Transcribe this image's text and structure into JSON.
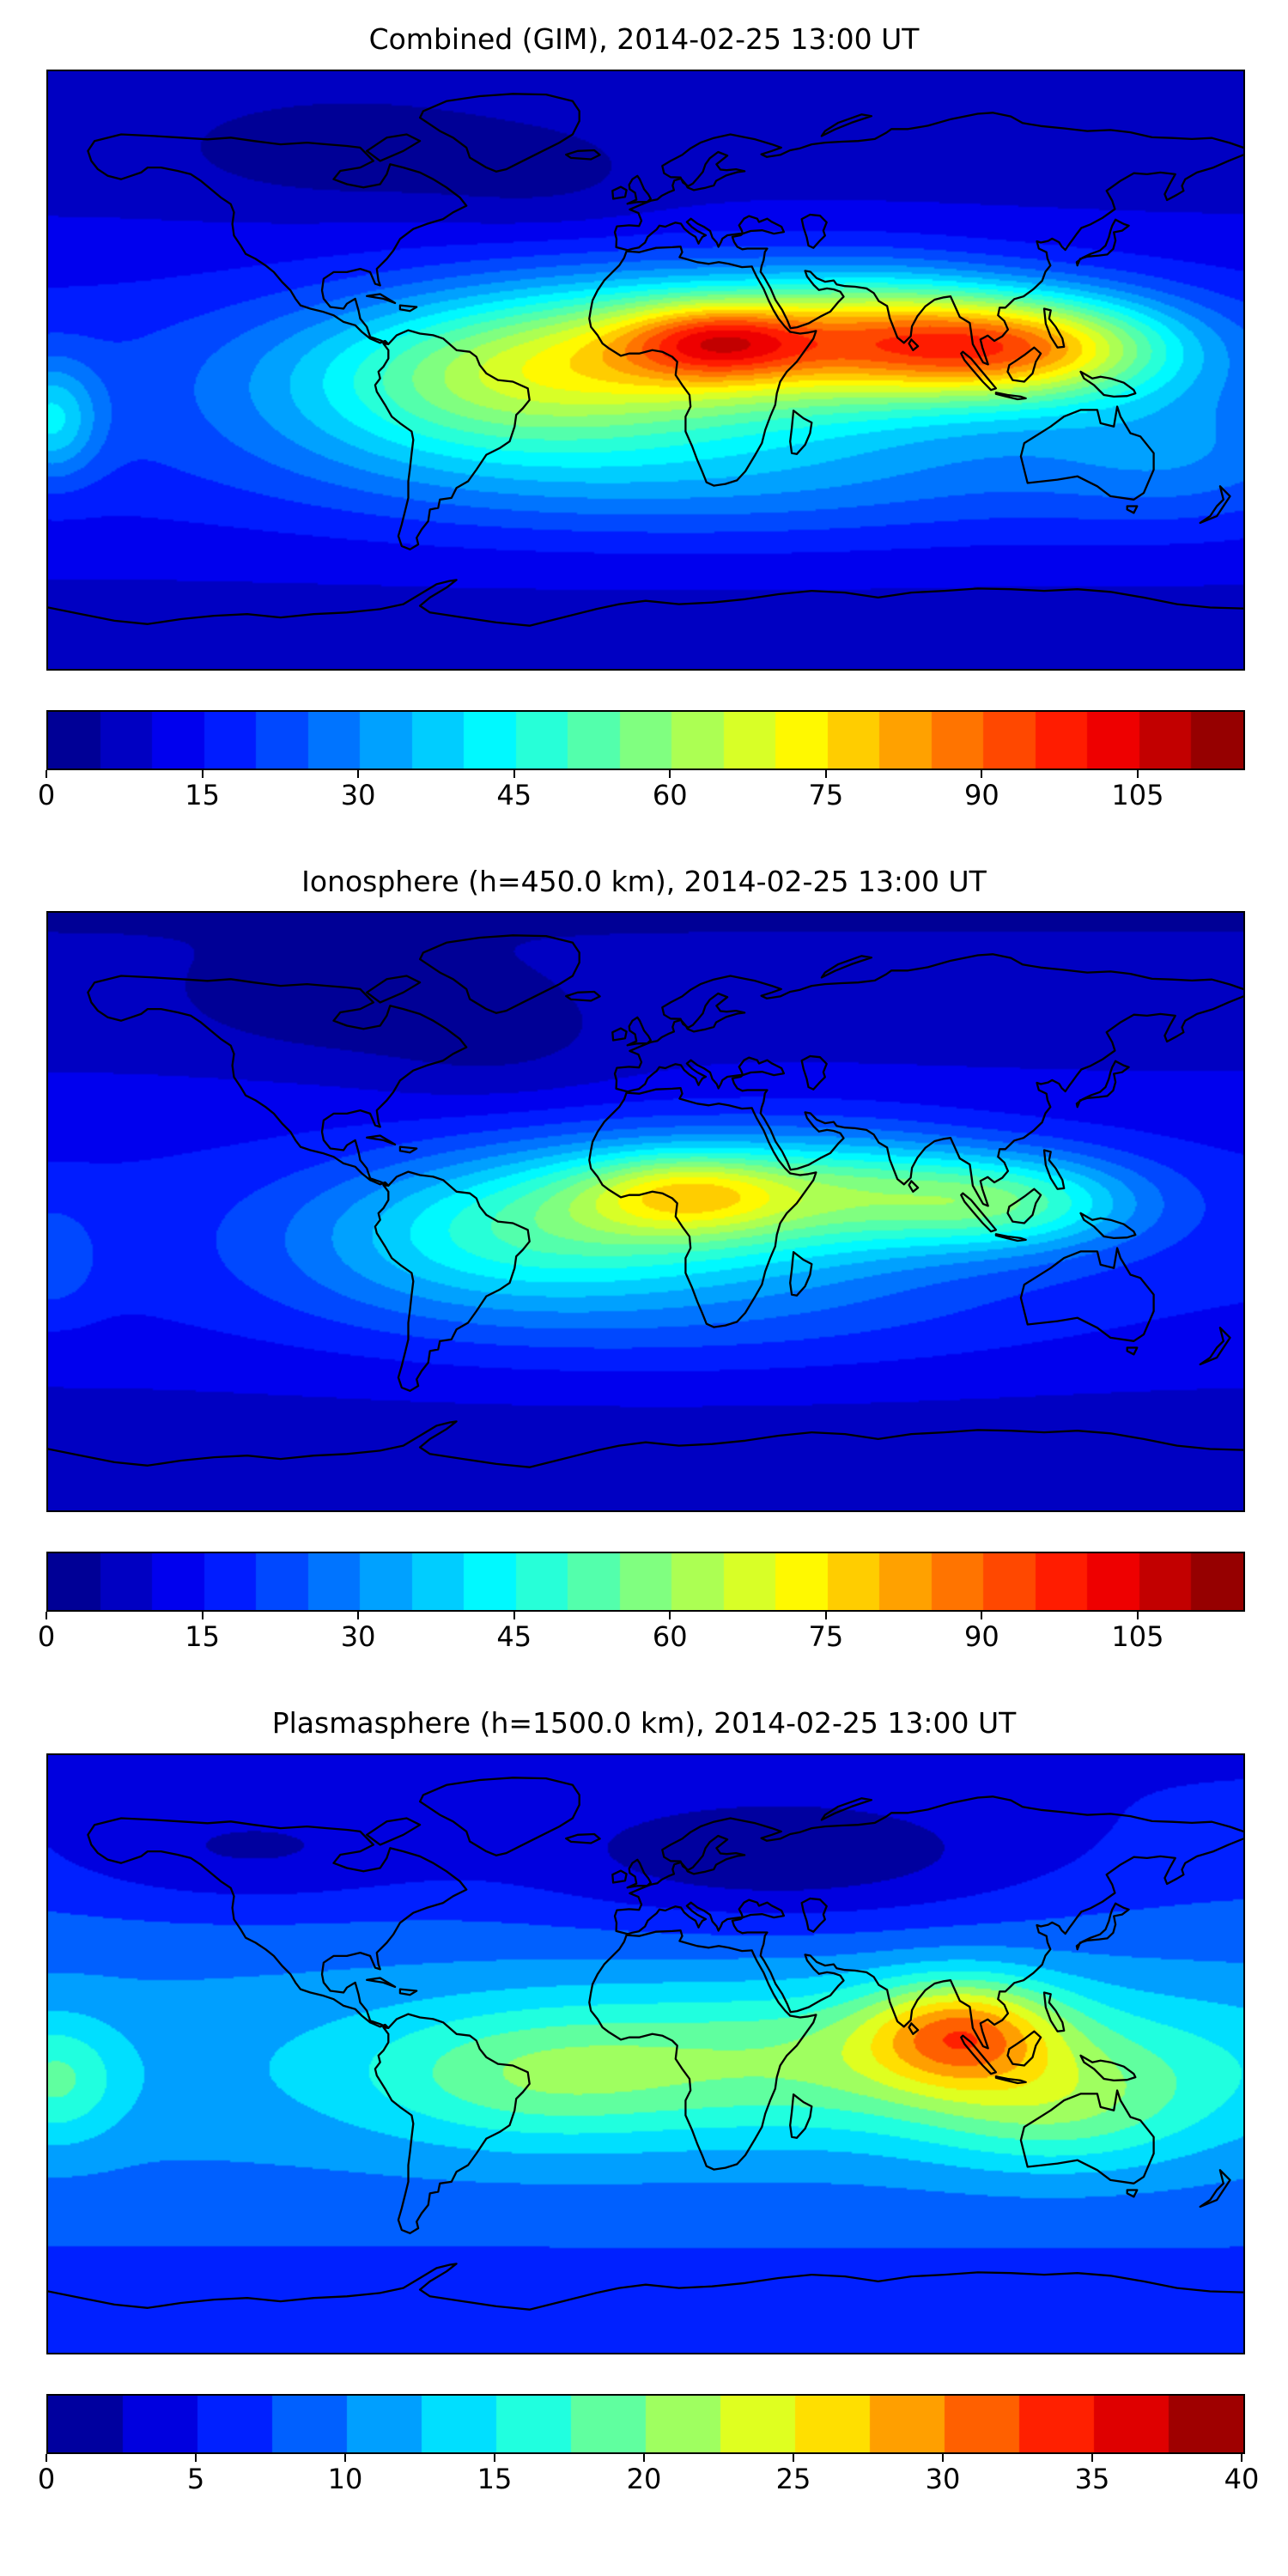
{
  "colors": {
    "background": "#ffffff",
    "coastline": "#000000",
    "frame": "#000000"
  },
  "chart_data": [
    {
      "type": "heatmap",
      "title": "Combined (GIM), 2014-02-25 13:00 UT",
      "projection": "equirectangular",
      "lon_range": [
        -180,
        180
      ],
      "lat_range": [
        -90,
        90
      ],
      "colormap": "jet",
      "value_range": [
        0,
        115
      ],
      "contour_step": 5,
      "colorbar_orientation": "horizontal",
      "colorbar_ticks": [
        0,
        15,
        30,
        45,
        60,
        75,
        90,
        105
      ],
      "peak_value": 105,
      "peak_location": {
        "lon": 22,
        "lat": 9
      },
      "field_model": {
        "base": 5,
        "blobs": [
          {
            "lon": 0,
            "lat": -8,
            "sx": 9999,
            "sy": 38,
            "a": 14
          },
          {
            "lon": 20,
            "lat": 6,
            "sx": 65,
            "sy": 16,
            "a": 50
          },
          {
            "lon": 22,
            "lat": 9,
            "sx": 20,
            "sy": 8,
            "a": 32
          },
          {
            "lon": 113,
            "lat": 7,
            "sx": 32,
            "sy": 11,
            "a": 52
          },
          {
            "lon": 70,
            "lat": 12,
            "sx": 25,
            "sy": 12,
            "a": 18
          },
          {
            "lon": -50,
            "lat": -8,
            "sx": 45,
            "sy": 16,
            "a": 22
          },
          {
            "lon": -179,
            "lat": -15,
            "sx": 10,
            "sy": 12,
            "a": 22
          },
          {
            "lon": 20,
            "lat": -32,
            "sx": 80,
            "sy": 14,
            "a": 14
          },
          {
            "lon": 160,
            "lat": -25,
            "sx": 30,
            "sy": 15,
            "a": 10
          },
          {
            "lon": -90,
            "lat": 62,
            "sx": 35,
            "sy": 10,
            "a": -5
          },
          {
            "lon": -30,
            "lat": 55,
            "sx": 25,
            "sy": 10,
            "a": -4
          }
        ]
      }
    },
    {
      "type": "heatmap",
      "title": "Ionosphere  (h=450.0 km), 2014-02-25 13:00 UT",
      "projection": "equirectangular",
      "lon_range": [
        -180,
        180
      ],
      "lat_range": [
        -90,
        90
      ],
      "colormap": "jet",
      "value_range": [
        0,
        115
      ],
      "contour_step": 5,
      "colorbar_orientation": "horizontal",
      "colorbar_ticks": [
        0,
        15,
        30,
        45,
        60,
        75,
        90,
        105
      ],
      "peak_value": 78,
      "peak_location": {
        "lon": 13,
        "lat": 6
      },
      "field_model": {
        "base": 4,
        "blobs": [
          {
            "lon": 0,
            "lat": -5,
            "sx": 9999,
            "sy": 40,
            "a": 12
          },
          {
            "lon": 15,
            "lat": 2,
            "sx": 55,
            "sy": 15,
            "a": 36
          },
          {
            "lon": 13,
            "lat": 6,
            "sx": 22,
            "sy": 8,
            "a": 24
          },
          {
            "lon": 110,
            "lat": 3,
            "sx": 28,
            "sy": 10,
            "a": 30
          },
          {
            "lon": 65,
            "lat": 8,
            "sx": 25,
            "sy": 11,
            "a": 12
          },
          {
            "lon": -50,
            "lat": -10,
            "sx": 42,
            "sy": 15,
            "a": 16
          },
          {
            "lon": 10,
            "lat": -30,
            "sx": 75,
            "sy": 14,
            "a": 9
          },
          {
            "lon": -179,
            "lat": -15,
            "sx": 10,
            "sy": 12,
            "a": 8
          },
          {
            "lon": -45,
            "lat": 48,
            "sx": 28,
            "sy": 12,
            "a": -5
          },
          {
            "lon": -95,
            "lat": 60,
            "sx": 30,
            "sy": 10,
            "a": -5
          }
        ]
      }
    },
    {
      "type": "heatmap",
      "title": "Plasmasphere (h=1500.0 km), 2014-02-25 13:00 UT",
      "projection": "equirectangular",
      "lon_range": [
        -180,
        180
      ],
      "lat_range": [
        -90,
        90
      ],
      "colormap": "jet",
      "value_range": [
        0,
        40
      ],
      "contour_step": 2.5,
      "colorbar_orientation": "horizontal",
      "colorbar_ticks": [
        0,
        5,
        10,
        15,
        20,
        25,
        30,
        35,
        40
      ],
      "peak_value": 33,
      "peak_location": {
        "lon": 95,
        "lat": 7
      },
      "field_model": {
        "base": 4,
        "blobs": [
          {
            "lon": 0,
            "lat": -5,
            "sx": 9999,
            "sy": 45,
            "a": 7
          },
          {
            "lon": 60,
            "lat": -2,
            "sx": 85,
            "sy": 16,
            "a": 9
          },
          {
            "lon": 95,
            "lat": 7,
            "sx": 20,
            "sy": 11,
            "a": 14
          },
          {
            "lon": -35,
            "lat": -8,
            "sx": 35,
            "sy": 14,
            "a": 5
          },
          {
            "lon": -178,
            "lat": -8,
            "sx": 14,
            "sy": 13,
            "a": 7
          },
          {
            "lon": 125,
            "lat": -18,
            "sx": 30,
            "sy": 13,
            "a": 6
          },
          {
            "lon": 40,
            "lat": 58,
            "sx": 55,
            "sy": 14,
            "a": -6
          },
          {
            "lon": -120,
            "lat": 60,
            "sx": 40,
            "sy": 12,
            "a": -4
          }
        ]
      }
    }
  ]
}
